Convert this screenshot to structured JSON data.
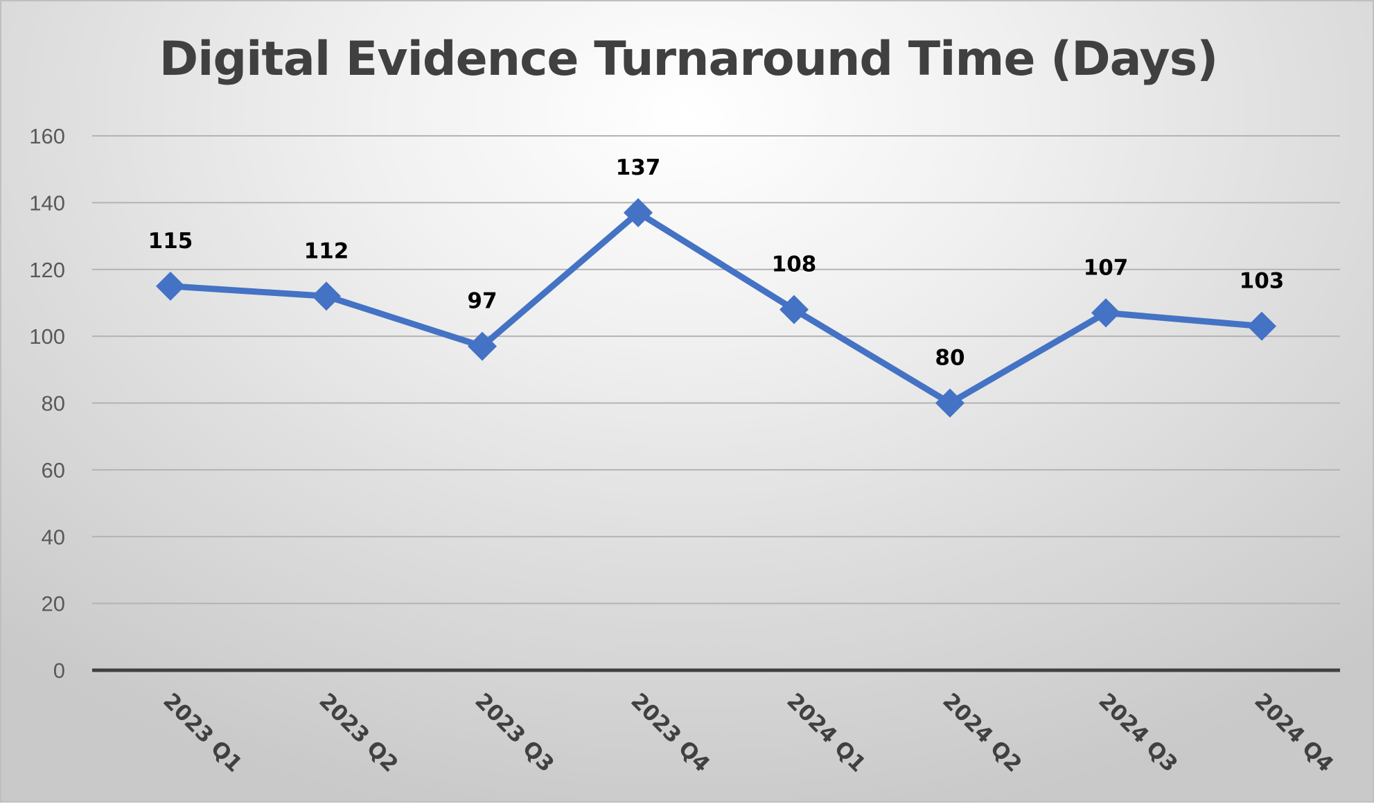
{
  "colors": {
    "series": "#4472c4",
    "drop_line": "#8faadc",
    "gridline": "#b3b3b3",
    "axis": "#404040",
    "title": "#404040"
  },
  "chart_data": {
    "type": "line",
    "title": "Digital Evidence Turnaround Time (Days)",
    "xlabel": "",
    "ylabel": "",
    "categories": [
      "2023 Q1",
      "2023 Q2",
      "2023 Q3",
      "2023 Q4",
      "2024 Q1",
      "2024 Q2",
      "2024 Q3",
      "2024 Q4"
    ],
    "series": [
      {
        "values": [
          115,
          112,
          97,
          137,
          108,
          80,
          107,
          103
        ]
      }
    ],
    "ylim": [
      0,
      160
    ],
    "y_ticks": [
      "0",
      "20",
      "40",
      "60",
      "80",
      "100",
      "120",
      "140",
      "160"
    ],
    "grid": true,
    "marker": "diamond",
    "data_labels": true,
    "drop_lines": true,
    "x_label_rotation": "45deg"
  }
}
